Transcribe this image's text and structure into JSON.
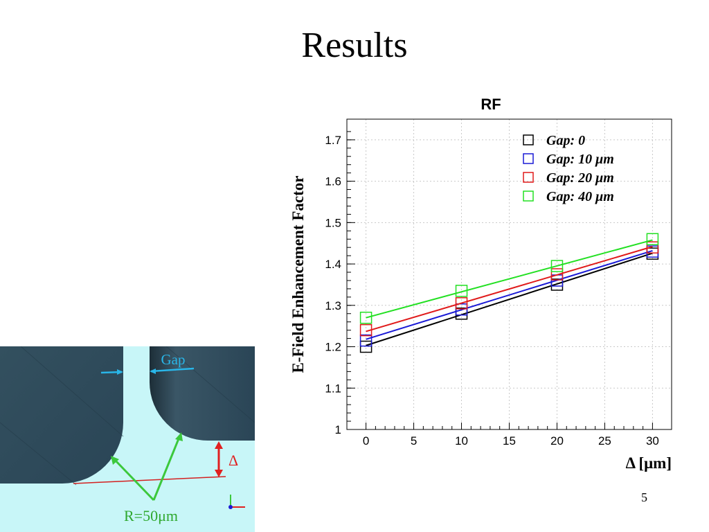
{
  "slide": {
    "title": "Results",
    "page_number": "5"
  },
  "figure": {
    "gap_label": "Gap",
    "delta_label": "Δ",
    "radius_label": "R=50μm",
    "colors": {
      "background": "#c8f6f8",
      "electrode": "#2d4a5c",
      "gap_arrow": "#29b6e8",
      "delta_arrow": "#e02020",
      "radius_arrow": "#3cc83c",
      "ref_line": "#d42020"
    }
  },
  "chart_data": {
    "type": "scatter",
    "title": "RF",
    "xlabel": "Δ   [μm]",
    "ylabel": "E-Field Enhancement Factor",
    "xlim": [
      -2,
      32
    ],
    "ylim": [
      1.0,
      1.75
    ],
    "xticks": [
      0,
      5,
      10,
      15,
      20,
      25,
      30
    ],
    "yticks": [
      1,
      1.1,
      1.2,
      1.3,
      1.4,
      1.5,
      1.6,
      1.7
    ],
    "ytick_labels": [
      "1",
      "1.1",
      "1.2",
      "1.3",
      "1.4",
      "1.5",
      "1.6",
      "1.7"
    ],
    "grid": true,
    "legend_position": "top-right",
    "x": [
      0,
      10,
      20,
      30
    ],
    "series": [
      {
        "name": "Gap:   0",
        "color": "#000000",
        "values": [
          1.2,
          1.28,
          1.35,
          1.425
        ],
        "fit": [
          1.203,
          1.426
        ]
      },
      {
        "name": "Gap: 10 μm",
        "color": "#1a1ad6",
        "values": [
          1.215,
          1.29,
          1.36,
          1.43
        ],
        "fit": [
          1.218,
          1.432
        ]
      },
      {
        "name": "Gap: 20 μm",
        "color": "#e01a1a",
        "values": [
          1.24,
          1.305,
          1.375,
          1.44
        ],
        "fit": [
          1.237,
          1.442
        ]
      },
      {
        "name": "Gap: 40 μm",
        "color": "#22e022",
        "values": [
          1.27,
          1.335,
          1.395,
          1.46
        ],
        "fit": [
          1.27,
          1.458
        ]
      }
    ]
  }
}
